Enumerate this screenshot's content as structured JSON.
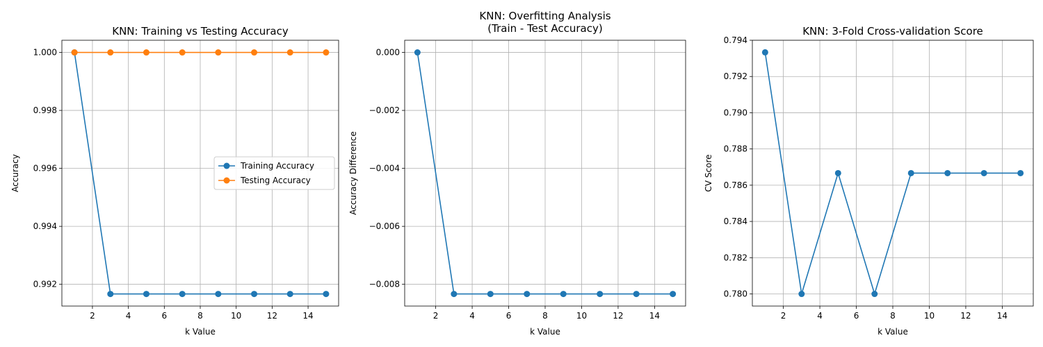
{
  "chart_data": [
    {
      "type": "line",
      "title": "KNN: Training vs Testing Accuracy",
      "xlabel": "k Value",
      "ylabel": "Accuracy",
      "x": [
        1,
        3,
        5,
        7,
        9,
        11,
        13,
        15
      ],
      "xlim": [
        0.3,
        15.7
      ],
      "ylim": [
        0.99125,
        1.00042
      ],
      "xticks": [
        2,
        4,
        6,
        8,
        10,
        12,
        14
      ],
      "yticks": [
        0.992,
        0.994,
        0.996,
        0.998,
        1.0
      ],
      "ytick_labels": [
        "0.992",
        "0.994",
        "0.996",
        "0.998",
        "1.000"
      ],
      "grid": true,
      "legend": "center-right",
      "series": [
        {
          "name": "Training Accuracy",
          "color": "#1f77b4",
          "values": [
            1.0,
            0.991667,
            0.991667,
            0.991667,
            0.991667,
            0.991667,
            0.991667,
            0.991667
          ]
        },
        {
          "name": "Testing Accuracy",
          "color": "#ff7f0e",
          "values": [
            1.0,
            1.0,
            1.0,
            1.0,
            1.0,
            1.0,
            1.0,
            1.0
          ]
        }
      ]
    },
    {
      "type": "line",
      "title": "KNN: Overfitting Analysis\n(Train - Test Accuracy)",
      "xlabel": "k Value",
      "ylabel": "Accuracy Difference",
      "x": [
        1,
        3,
        5,
        7,
        9,
        11,
        13,
        15
      ],
      "xlim": [
        0.3,
        15.7
      ],
      "ylim": [
        -0.00875,
        0.00042
      ],
      "xticks": [
        2,
        4,
        6,
        8,
        10,
        12,
        14
      ],
      "yticks": [
        -0.008,
        -0.006,
        -0.004,
        -0.002,
        0.0
      ],
      "ytick_labels": [
        "−0.008",
        "−0.006",
        "−0.004",
        "−0.002",
        "0.000"
      ],
      "grid": true,
      "legend": "none",
      "series": [
        {
          "color": "#1f77b4",
          "values": [
            0.0,
            -0.008333,
            -0.008333,
            -0.008333,
            -0.008333,
            -0.008333,
            -0.008333,
            -0.008333
          ]
        }
      ]
    },
    {
      "type": "line",
      "title": "KNN: 3-Fold Cross-validation Score",
      "xlabel": "k Value",
      "ylabel": "CV Score",
      "x": [
        1,
        3,
        5,
        7,
        9,
        11,
        13,
        15
      ],
      "xlim": [
        0.3,
        15.7
      ],
      "ylim": [
        0.77933,
        0.794
      ],
      "xticks": [
        2,
        4,
        6,
        8,
        10,
        12,
        14
      ],
      "yticks": [
        0.78,
        0.782,
        0.784,
        0.786,
        0.788,
        0.79,
        0.792,
        0.794
      ],
      "ytick_labels": [
        "0.780",
        "0.782",
        "0.784",
        "0.786",
        "0.788",
        "0.790",
        "0.792",
        "0.794"
      ],
      "grid": true,
      "legend": "none",
      "series": [
        {
          "color": "#1f77b4",
          "values": [
            0.793333,
            0.78,
            0.786667,
            0.78,
            0.786667,
            0.786667,
            0.786667,
            0.786667
          ]
        }
      ]
    }
  ]
}
